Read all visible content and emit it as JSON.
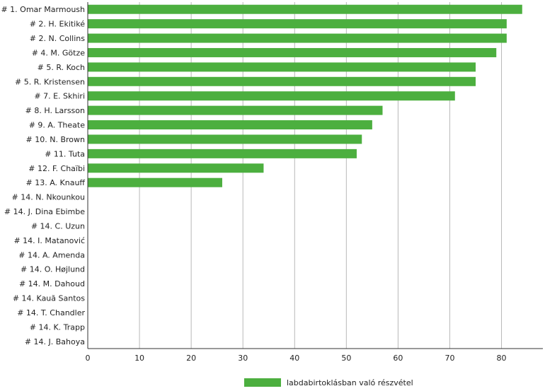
{
  "chart_data": {
    "type": "bar",
    "orientation": "horizontal",
    "categories": [
      "# 1.  Omar Marmoush",
      "# 2.  H. Ekitiké",
      "# 2.  N. Collins",
      "# 4.  M. Götze",
      "# 5.  R. Koch",
      "# 5.  R. Kristensen",
      "# 7.  E. Skhiri",
      "# 8.  H. Larsson",
      "# 9.  A. Theate",
      "# 10.  N. Brown",
      "# 11.  Tuta",
      "# 12.  F. Chaïbi",
      "# 13.  A. Knauff",
      "# 14.  N. Nkounkou",
      "# 14.  J. Dina Ebimbe",
      "# 14.  C. Uzun",
      "# 14.  I. Matanović",
      "# 14.  A. Amenda",
      "# 14.  O. Højlund",
      "# 14.  M. Dahoud",
      "# 14.  Kauã Santos",
      "# 14.  T. Chandler",
      "# 14.  K. Trapp",
      "# 14.  J. Bahoya"
    ],
    "series": [
      {
        "name": "labdabirtoklásban való részvétel",
        "color": "#4caf3f",
        "values": [
          84,
          81,
          81,
          79,
          75,
          75,
          71,
          57,
          55,
          53,
          52,
          34,
          26,
          0,
          0,
          0,
          0,
          0,
          0,
          0,
          0,
          0,
          0,
          0
        ]
      }
    ],
    "xlim": [
      0,
      88
    ],
    "xticks": [
      0,
      10,
      20,
      30,
      40,
      50,
      60,
      70,
      80
    ],
    "grid": "vertical",
    "legend_position": "bottom",
    "xlabel": "",
    "ylabel": "",
    "title": ""
  }
}
